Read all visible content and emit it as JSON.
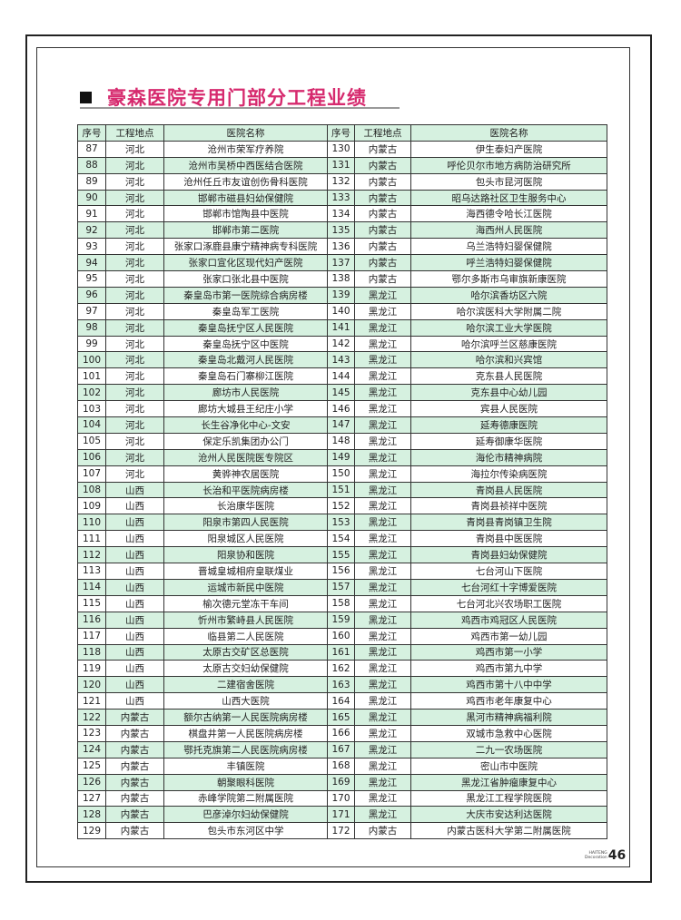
{
  "title": "豪森医院专用门部分工程业绩",
  "table": {
    "headers": [
      "序号",
      "工程地点",
      "医院名称",
      "序号",
      "工程地点",
      "医院名称"
    ],
    "left": [
      [
        "87",
        "河北",
        "沧州市荣军疗养院"
      ],
      [
        "88",
        "河北",
        "沧州市吴桥中西医结合医院"
      ],
      [
        "89",
        "河北",
        "沧州任丘市友谊创伤骨科医院"
      ],
      [
        "90",
        "河北",
        "邯郸市磁县妇幼保健院"
      ],
      [
        "91",
        "河北",
        "邯郸市馆陶县中医院"
      ],
      [
        "92",
        "河北",
        "邯郸市第二医院"
      ],
      [
        "93",
        "河北",
        "张家口涿鹿县康宁精神病专科医院"
      ],
      [
        "94",
        "河北",
        "张家口宣化区现代妇产医院"
      ],
      [
        "95",
        "河北",
        "张家口张北县中医院"
      ],
      [
        "96",
        "河北",
        "秦皇岛市第一医院综合病房楼"
      ],
      [
        "97",
        "河北",
        "秦皇岛军工医院"
      ],
      [
        "98",
        "河北",
        "秦皇岛抚宁区人民医院"
      ],
      [
        "99",
        "河北",
        "秦皇岛抚宁区中医院"
      ],
      [
        "100",
        "河北",
        "秦皇岛北戴河人民医院"
      ],
      [
        "101",
        "河北",
        "秦皇岛石门寨柳江医院"
      ],
      [
        "102",
        "河北",
        "廊坊市人民医院"
      ],
      [
        "103",
        "河北",
        "廊坊大城县王纪庄小学"
      ],
      [
        "104",
        "河北",
        "长生谷净化中心-文安"
      ],
      [
        "105",
        "河北",
        "保定乐凯集团办公门"
      ],
      [
        "106",
        "河北",
        "沧州人民医院医专院区"
      ],
      [
        "107",
        "河北",
        "黄骅神农居医院"
      ],
      [
        "108",
        "山西",
        "长治和平医院病房楼"
      ],
      [
        "109",
        "山西",
        "长治康华医院"
      ],
      [
        "110",
        "山西",
        "阳泉市第四人民医院"
      ],
      [
        "111",
        "山西",
        "阳泉城区人民医院"
      ],
      [
        "112",
        "山西",
        "阳泉协和医院"
      ],
      [
        "113",
        "山西",
        "晋城皇城相府皇联煤业"
      ],
      [
        "114",
        "山西",
        "运城市新民中医院"
      ],
      [
        "115",
        "山西",
        "榆次德元堂冻干车间"
      ],
      [
        "116",
        "山西",
        "忻州市繁峙县人民医院"
      ],
      [
        "117",
        "山西",
        "临县第二人民医院"
      ],
      [
        "118",
        "山西",
        "太原古交矿区总医院"
      ],
      [
        "119",
        "山西",
        "太原古交妇幼保健院"
      ],
      [
        "120",
        "山西",
        "二建宿舍医院"
      ],
      [
        "121",
        "山西",
        "山西大医院"
      ],
      [
        "122",
        "内蒙古",
        "额尔古纳第一人民医院病房楼"
      ],
      [
        "123",
        "内蒙古",
        "棋盘井第一人民医院病房楼"
      ],
      [
        "124",
        "内蒙古",
        "鄂托克旗第二人民医院病房楼"
      ],
      [
        "125",
        "内蒙古",
        "丰镇医院"
      ],
      [
        "126",
        "内蒙古",
        "朝聚眼科医院"
      ],
      [
        "127",
        "内蒙古",
        "赤峰学院第二附属医院"
      ],
      [
        "128",
        "内蒙古",
        "巴彦淖尔妇幼保健院"
      ],
      [
        "129",
        "内蒙古",
        "包头市东河区中学"
      ]
    ],
    "right": [
      [
        "130",
        "内蒙古",
        "伊生泰妇产医院"
      ],
      [
        "131",
        "内蒙古",
        "呼伦贝尔市地方病防治研究所"
      ],
      [
        "132",
        "内蒙古",
        "包头市昆河医院"
      ],
      [
        "133",
        "内蒙古",
        "昭乌达路社区卫生服务中心"
      ],
      [
        "134",
        "内蒙古",
        "海西德令哈长江医院"
      ],
      [
        "135",
        "内蒙古",
        "海西州人民医院"
      ],
      [
        "136",
        "内蒙古",
        "乌兰浩特妇婴保健院"
      ],
      [
        "137",
        "内蒙古",
        "呼兰浩特妇婴保健院"
      ],
      [
        "138",
        "内蒙古",
        "鄂尔多斯市乌审旗新康医院"
      ],
      [
        "139",
        "黑龙江",
        "哈尔滨香坊区六院"
      ],
      [
        "140",
        "黑龙江",
        "哈尔滨医科大学附属二院"
      ],
      [
        "141",
        "黑龙江",
        "哈尔滨工业大学医院"
      ],
      [
        "142",
        "黑龙江",
        "哈尔滨呼兰区慈康医院"
      ],
      [
        "143",
        "黑龙江",
        "哈尔滨和兴宾馆"
      ],
      [
        "144",
        "黑龙江",
        "克东县人民医院"
      ],
      [
        "145",
        "黑龙江",
        "克东县中心幼儿园"
      ],
      [
        "146",
        "黑龙江",
        "宾县人民医院"
      ],
      [
        "147",
        "黑龙江",
        "延寿德康医院"
      ],
      [
        "148",
        "黑龙江",
        "延寿御康华医院"
      ],
      [
        "149",
        "黑龙江",
        "海伦市精神病院"
      ],
      [
        "150",
        "黑龙江",
        "海拉尔传染病医院"
      ],
      [
        "151",
        "黑龙江",
        "青岗县人民医院"
      ],
      [
        "152",
        "黑龙江",
        "青岗县祯祥中医院"
      ],
      [
        "153",
        "黑龙江",
        "青岗县青岗镇卫生院"
      ],
      [
        "154",
        "黑龙江",
        "青岗县中医医院"
      ],
      [
        "155",
        "黑龙江",
        "青岗县妇幼保健院"
      ],
      [
        "156",
        "黑龙江",
        "七台河山下医院"
      ],
      [
        "157",
        "黑龙江",
        "七台河红十字博爱医院"
      ],
      [
        "158",
        "黑龙江",
        "七台河北兴农场职工医院"
      ],
      [
        "159",
        "黑龙江",
        "鸡西市鸡冠区人民医院"
      ],
      [
        "160",
        "黑龙江",
        "鸡西市第一幼儿园"
      ],
      [
        "161",
        "黑龙江",
        "鸡西市第一小学"
      ],
      [
        "162",
        "黑龙江",
        "鸡西市第九中学"
      ],
      [
        "163",
        "黑龙江",
        "鸡西市第十八中中学"
      ],
      [
        "164",
        "黑龙江",
        "鸡西市老年康复中心"
      ],
      [
        "165",
        "黑龙江",
        "黑河市精神病福利院"
      ],
      [
        "166",
        "黑龙江",
        "双城市急救中心医院"
      ],
      [
        "167",
        "黑龙江",
        "二九一农场医院"
      ],
      [
        "168",
        "黑龙江",
        "密山市中医院"
      ],
      [
        "169",
        "黑龙江",
        "黑龙江省肿瘤康复中心"
      ],
      [
        "170",
        "黑龙江",
        "黑龙江工程学院医院"
      ],
      [
        "171",
        "黑龙江",
        "大庆市安达利达医院"
      ],
      [
        "172",
        "内蒙古",
        "内蒙古医科大学第二附属医院"
      ]
    ]
  },
  "footer": {
    "brand_line1": "HAITENG",
    "brand_line2": "Decoration",
    "page_number": "46"
  },
  "colors": {
    "title": "#d62a6e",
    "row_stripe": "#d6f1e0"
  }
}
